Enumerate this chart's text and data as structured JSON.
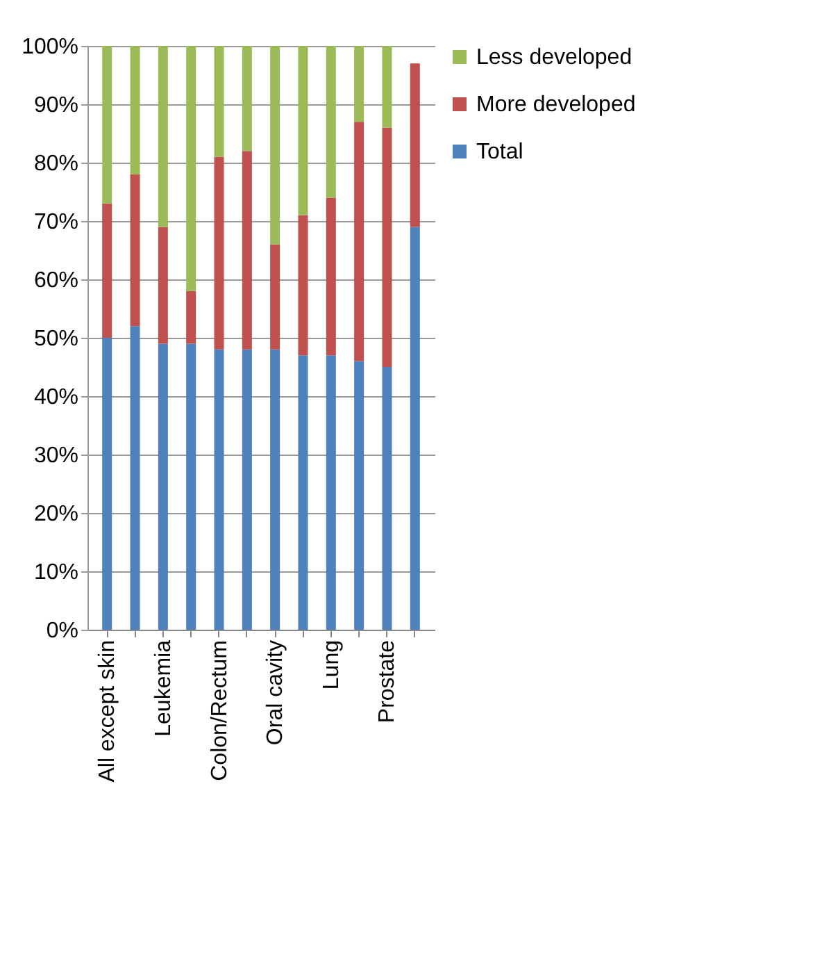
{
  "chart_data": {
    "type": "bar",
    "stacked": true,
    "categories": [
      "All except skin",
      null,
      "Leukemia",
      null,
      "Colon/Rectum",
      null,
      "Oral cavity",
      null,
      "Lung",
      null,
      "Prostate",
      null
    ],
    "series": [
      {
        "name": "Total",
        "color": "#4f81bd",
        "values": [
          50,
          52,
          49,
          49,
          48,
          48,
          48,
          47,
          47,
          46,
          45,
          69
        ]
      },
      {
        "name": "More developed",
        "color": "#c0504d",
        "values": [
          23,
          26,
          20,
          9,
          33,
          34,
          18,
          24,
          27,
          41,
          41,
          28
        ]
      },
      {
        "name": "Less developed",
        "color": "#9bbb59",
        "values": [
          27,
          22,
          31,
          42,
          19,
          18,
          34,
          29,
          26,
          13,
          14,
          0
        ]
      }
    ],
    "ylim": [
      0,
      100
    ],
    "yticks": [
      {
        "value": 0,
        "label": "0%"
      },
      {
        "value": 10,
        "label": "10%"
      },
      {
        "value": 20,
        "label": "20%"
      },
      {
        "value": 30,
        "label": "30%"
      },
      {
        "value": 40,
        "label": "40%"
      },
      {
        "value": 50,
        "label": "50%"
      },
      {
        "value": 60,
        "label": "60%"
      },
      {
        "value": 70,
        "label": "70%"
      },
      {
        "value": 80,
        "label": "80%"
      },
      {
        "value": 90,
        "label": "90%"
      },
      {
        "value": 100,
        "label": "100%"
      }
    ],
    "grid": "y",
    "legend": "right"
  }
}
